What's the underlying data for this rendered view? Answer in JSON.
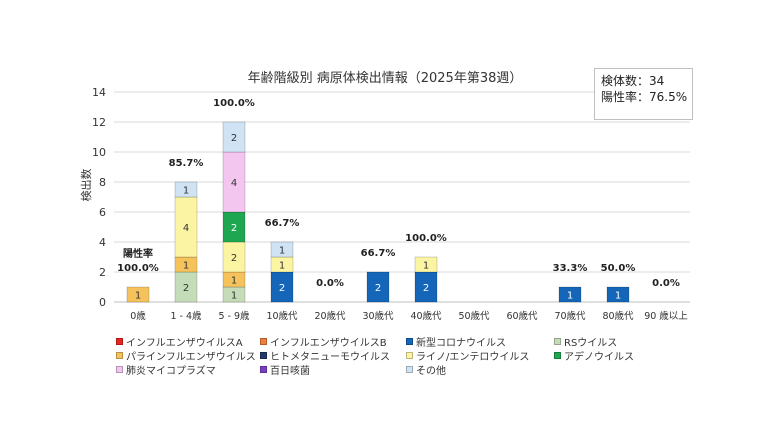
{
  "chart_data": {
    "type": "bar",
    "stacked": true,
    "title": "年齢階級別 病原体検出情報（2025年第38週）",
    "ylabel": "検出数",
    "xlabel": "",
    "ylim": [
      0,
      14
    ],
    "yticks": [
      0,
      2,
      4,
      6,
      8,
      10,
      12,
      14
    ],
    "grid": true,
    "categories": [
      "0歳",
      "1 - 4歳",
      "5 - 9歳",
      "10歳代",
      "20歳代",
      "30歳代",
      "40歳代",
      "50歳代",
      "60歳代",
      "70歳代",
      "80歳代",
      "90 歳以上"
    ],
    "positivity_label": "陽性率",
    "positivity": [
      "100.0%",
      "85.7%",
      "100.0%",
      "66.7%",
      "0.0%",
      "66.7%",
      "100.0%",
      null,
      null,
      "33.3%",
      "50.0%",
      "0.0%"
    ],
    "series": [
      {
        "name": "インフルエンザウイルスA",
        "color": "#e8251f",
        "values": [
          0,
          0,
          0,
          0,
          0,
          0,
          0,
          0,
          0,
          0,
          0,
          0
        ]
      },
      {
        "name": "インフルエンザウイルスB",
        "color": "#f07d3a",
        "values": [
          0,
          0,
          0,
          0,
          0,
          0,
          0,
          0,
          0,
          0,
          0,
          0
        ]
      },
      {
        "name": "新型コロナウイルス",
        "color": "#1565b8",
        "values": [
          0,
          0,
          0,
          2,
          0,
          2,
          2,
          0,
          0,
          1,
          1,
          0
        ]
      },
      {
        "name": "RSウイルス",
        "color": "#c4dcb8",
        "values": [
          0,
          2,
          1,
          0,
          0,
          0,
          0,
          0,
          0,
          0,
          0,
          0
        ]
      },
      {
        "name": "パラインフルエンザウイルス",
        "color": "#f5c25c",
        "values": [
          1,
          1,
          1,
          0,
          0,
          0,
          0,
          0,
          0,
          0,
          0,
          0
        ]
      },
      {
        "name": "ヒトメタニューモウイルス",
        "color": "#243a6b",
        "values": [
          0,
          0,
          0,
          0,
          0,
          0,
          0,
          0,
          0,
          0,
          0,
          0
        ]
      },
      {
        "name": "ライノ/エンテロウイルス",
        "color": "#fbf5a3",
        "values": [
          0,
          4,
          2,
          1,
          0,
          0,
          1,
          0,
          0,
          0,
          0,
          0
        ]
      },
      {
        "name": "アデノウイルス",
        "color": "#1ea650",
        "values": [
          0,
          0,
          2,
          0,
          0,
          0,
          0,
          0,
          0,
          0,
          0,
          0
        ]
      },
      {
        "name": "肺炎マイコプラズマ",
        "color": "#f3c6f0",
        "values": [
          0,
          0,
          4,
          0,
          0,
          0,
          0,
          0,
          0,
          0,
          0,
          0
        ]
      },
      {
        "name": "百日咳菌",
        "color": "#7b3fc4",
        "values": [
          0,
          0,
          0,
          0,
          0,
          0,
          0,
          0,
          0,
          0,
          0,
          0
        ]
      },
      {
        "name": "その他",
        "color": "#cfe3f5",
        "values": [
          0,
          1,
          2,
          1,
          0,
          0,
          0,
          0,
          0,
          0,
          0,
          0
        ]
      }
    ],
    "stack_order": [
      2,
      3,
      4,
      6,
      7,
      8,
      10
    ],
    "legend_order": [
      0,
      1,
      2,
      3,
      4,
      5,
      6,
      7,
      8,
      9,
      10
    ],
    "legend_position": "bottom"
  },
  "info_box": {
    "specimens": "検体数：34",
    "positivity_rate": "陽性率：76.5%"
  }
}
